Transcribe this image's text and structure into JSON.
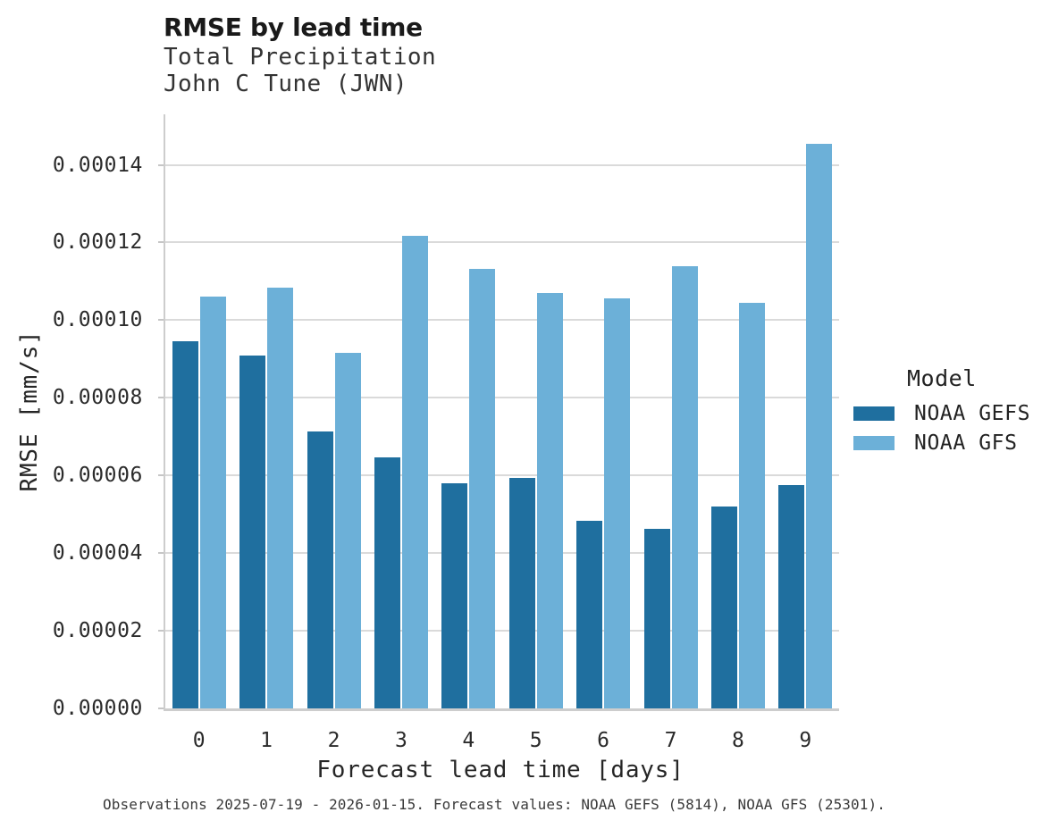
{
  "header": {
    "title": "RMSE by lead time",
    "subtitle_line1": "Total Precipitation",
    "subtitle_line2": "John C Tune (JWN)"
  },
  "chart_data": {
    "type": "bar",
    "title": "RMSE by lead time",
    "subtitle": [
      "Total Precipitation",
      "John C Tune (JWN)"
    ],
    "xlabel": "Forecast lead time [days]",
    "ylabel": "RMSE [mm/s]",
    "categories": [
      "0",
      "1",
      "2",
      "3",
      "4",
      "5",
      "6",
      "7",
      "8",
      "9"
    ],
    "series": [
      {
        "name": "NOAA GEFS",
        "color": "#1f6f9f",
        "values": [
          9.45e-05,
          9.08e-05,
          7.14e-05,
          6.47e-05,
          5.8e-05,
          5.93e-05,
          4.83e-05,
          4.62e-05,
          5.19e-05,
          5.76e-05
        ]
      },
      {
        "name": "NOAA GFS",
        "color": "#6cb0d8",
        "values": [
          0.0001061,
          0.0001083,
          9.15e-05,
          0.0001217,
          0.0001131,
          0.0001071,
          0.0001055,
          0.000114,
          0.0001045,
          0.0001453
        ]
      }
    ],
    "ylim": [
      0,
      0.000153
    ],
    "yticks": [
      0,
      2e-05,
      4e-05,
      6e-05,
      8e-05,
      0.0001,
      0.00012,
      0.00014
    ],
    "ytick_labels": [
      "0.00000",
      "0.00002",
      "0.00004",
      "0.00006",
      "0.00008",
      "0.00010",
      "0.00012",
      "0.00014"
    ],
    "grid": "horizontal",
    "legend_title": "Model",
    "legend_position": "right-center"
  },
  "legend": {
    "title": "Model",
    "entries": [
      {
        "label": "NOAA GEFS",
        "color": "#1f6f9f"
      },
      {
        "label": "NOAA GFS",
        "color": "#6cb0d8"
      }
    ]
  },
  "caption": "Observations 2025-07-19 - 2026-01-15. Forecast values: NOAA GEFS (5814), NOAA GFS (25301)."
}
